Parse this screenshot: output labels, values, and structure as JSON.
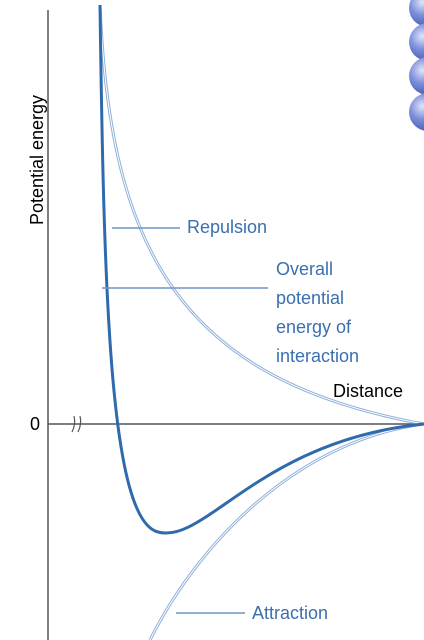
{
  "axis": {
    "y_label": "Potential energy",
    "zero": "0",
    "x_label": "Distance"
  },
  "labels": {
    "repulsion": "Repulsion",
    "overall": [
      "Overall",
      "potential",
      "energy of",
      "interaction"
    ],
    "attraction": "Attraction"
  }
}
